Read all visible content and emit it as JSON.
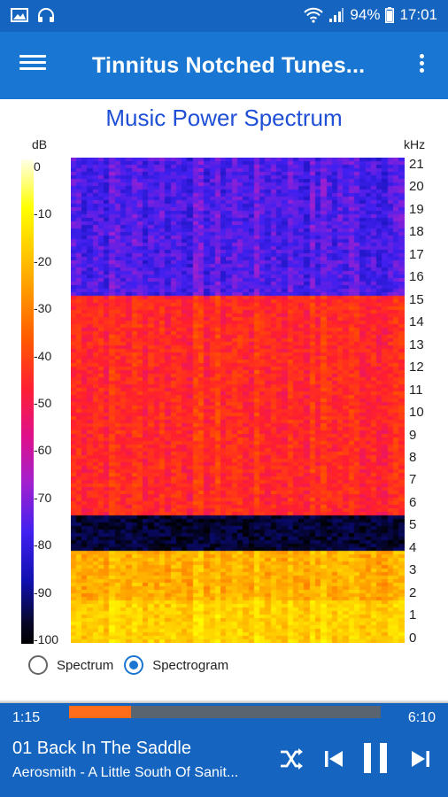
{
  "status_bar": {
    "battery": "94%",
    "time": "17:01"
  },
  "app_bar": {
    "title": "Tinnitus Notched Tunes..."
  },
  "chart_data": {
    "type": "heatmap",
    "title": "Music Power Spectrum",
    "colorbar_unit": "dB",
    "colorbar_ticks": [
      "0",
      "-10",
      "-20",
      "-30",
      "-40",
      "-50",
      "-60",
      "-70",
      "-80",
      "-90",
      "-100"
    ],
    "y_unit": "kHz",
    "y_ticks": [
      "21",
      "20",
      "19",
      "18",
      "17",
      "16",
      "15",
      "14",
      "13",
      "12",
      "11",
      "10",
      "9",
      "8",
      "7",
      "6",
      "5",
      "4",
      "3",
      "2",
      "1",
      "0"
    ],
    "ylim": [
      0,
      21.5
    ],
    "bands": [
      {
        "from_khz": 0,
        "to_khz": 4.1,
        "level_db": -25
      },
      {
        "from_khz": 4.1,
        "to_khz": 5.7,
        "level_db": -100
      },
      {
        "from_khz": 5.7,
        "to_khz": 15.5,
        "level_db": -47
      },
      {
        "from_khz": 15.5,
        "to_khz": 21.5,
        "level_db": -78
      }
    ]
  },
  "view_options": {
    "spectrum_label": "Spectrum",
    "spectrogram_label": "Spectrogram",
    "selected": "spectrogram"
  },
  "player": {
    "elapsed": "1:15",
    "duration": "6:10",
    "progress_fraction": 0.2,
    "track_title": "01 Back In The Saddle",
    "track_subtitle": "Aerosmith - A Little South Of Sanit...",
    "accent": "#ff6d1a"
  }
}
